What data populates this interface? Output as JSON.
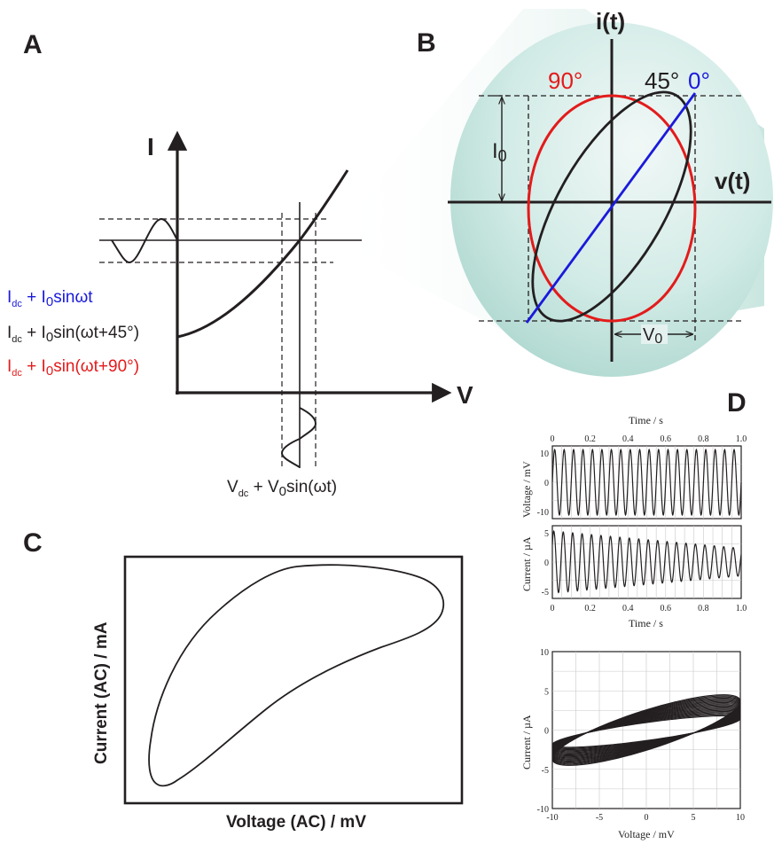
{
  "panels": {
    "a": {
      "letter": "A",
      "y_axis": "I",
      "x_axis": "V",
      "eq_dc": "I",
      "eq_dc_sub": "dc",
      "eq_blue_rest": " + I",
      "eq_blue_tail": "sinωt",
      "eq_black_rest": " + I",
      "eq_black_tail": "sin(ωt+45°)",
      "eq_red_rest": " + I",
      "eq_red_tail": "sin(ωt+90°)",
      "sub_zero": "0",
      "v_label_main": "V",
      "v_label_sub": "dc",
      "v_label_rest": " + V",
      "v_label_tail": "sin(ωt)"
    },
    "b": {
      "letter": "B",
      "y_axis": "i(t)",
      "x_axis": "v(t)",
      "angle_90": "90°",
      "angle_45": "45°",
      "angle_0": "0°",
      "i0_main": "I",
      "v0_main": "V",
      "sub_zero": "0"
    },
    "c": {
      "letter": "C",
      "y_label": "Current (AC) / mA",
      "x_label": "Voltage (AC) / mV"
    },
    "d": {
      "letter": "D",
      "top_axis_title": "Time / s",
      "bottom_axis_title": "Time / s",
      "voltage_label": "Voltage / mV",
      "current_label": "Current / µA",
      "lissajous_y_label": "Current / µA",
      "lissajous_x_label": "Voltage / mV"
    }
  },
  "colors": {
    "blue": "#1a1adc",
    "red": "#e31b1b",
    "black": "#231f20",
    "teal_light": "#e6f3f1",
    "teal_dark": "#a9d5cc"
  },
  "chart_data": [
    {
      "type": "line",
      "x": [
        0,
        0.2,
        0.4,
        0.6,
        0.8,
        1.0
      ],
      "xlabel": "Time / s",
      "ylabel": "Voltage / mV",
      "xlim": [
        0,
        1.0
      ],
      "ylim": [
        -10,
        10
      ],
      "x_ticks": [
        "0",
        "0.2",
        "0.4",
        "0.6",
        "0.8",
        "1.0"
      ],
      "y_ticks": [
        "10",
        "0",
        "-10"
      ],
      "signal": {
        "amplitude": 10,
        "cycles": 20,
        "decay": 0
      },
      "grid": true
    },
    {
      "type": "line",
      "x": [
        0,
        0.2,
        0.4,
        0.6,
        0.8,
        1.0
      ],
      "xlabel": "Time / s",
      "ylabel": "Current / µA",
      "xlim": [
        0,
        1.0
      ],
      "ylim": [
        -5,
        5
      ],
      "x_ticks": [
        "0",
        "0.2",
        "0.4",
        "0.6",
        "0.8",
        "1.0"
      ],
      "y_ticks": [
        "5",
        "0",
        "-5"
      ],
      "signal": {
        "amplitude_start": 4.5,
        "amplitude_end": 2,
        "cycles": 20
      },
      "grid": true
    },
    {
      "type": "line",
      "xlabel": "Voltage / mV",
      "ylabel": "Current / µA",
      "xlim": [
        -10,
        10
      ],
      "ylim": [
        -10,
        10
      ],
      "x_ticks": [
        "-10",
        "-5",
        "0",
        "5",
        "10"
      ],
      "y_ticks": [
        "10",
        "5",
        "0",
        "-5",
        "-10"
      ],
      "loops": {
        "voltage_amplitude": 10,
        "current_amplitude_range": [
          2,
          4.5
        ],
        "phase_deg": 35,
        "count": 20
      },
      "grid": true
    }
  ]
}
